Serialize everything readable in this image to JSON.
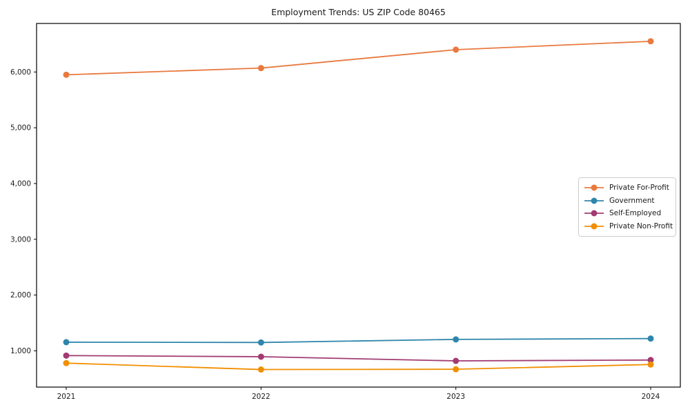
{
  "figure": {
    "background": "#ffffff",
    "axis_color": "#000000",
    "text_color": "#1a1a1a"
  },
  "chart_data": {
    "type": "line",
    "title": "Employment Trends: US ZIP Code 80465",
    "categories": [
      "2021",
      "2022",
      "2023",
      "2024"
    ],
    "series": [
      {
        "name": "Private For-Profit",
        "color": "#E8793F",
        "values": [
          5950,
          6070,
          6400,
          6550
        ]
      },
      {
        "name": "Government",
        "color": "#2E86AB",
        "values": [
          1155,
          1150,
          1205,
          1220
        ]
      },
      {
        "name": "Self-Employed",
        "color": "#A23B72",
        "values": [
          915,
          895,
          820,
          835
        ]
      },
      {
        "name": "Private Non-Profit",
        "color": "#F18F01",
        "values": [
          780,
          665,
          670,
          755
        ]
      }
    ],
    "xlabel": "",
    "ylabel": "",
    "ylim": [
      350,
      6870
    ],
    "yticks": [
      1000,
      2000,
      3000,
      4000,
      5000,
      6000
    ],
    "ytick_labels": [
      "1,000",
      "2,000",
      "3,000",
      "4,000",
      "5,000",
      "6,000"
    ],
    "grid": false,
    "marker": "circle",
    "legend_position": "center-right",
    "legend_entries": [
      "Private For-Profit",
      "Government",
      "Self-Employed",
      "Private Non-Profit"
    ]
  }
}
